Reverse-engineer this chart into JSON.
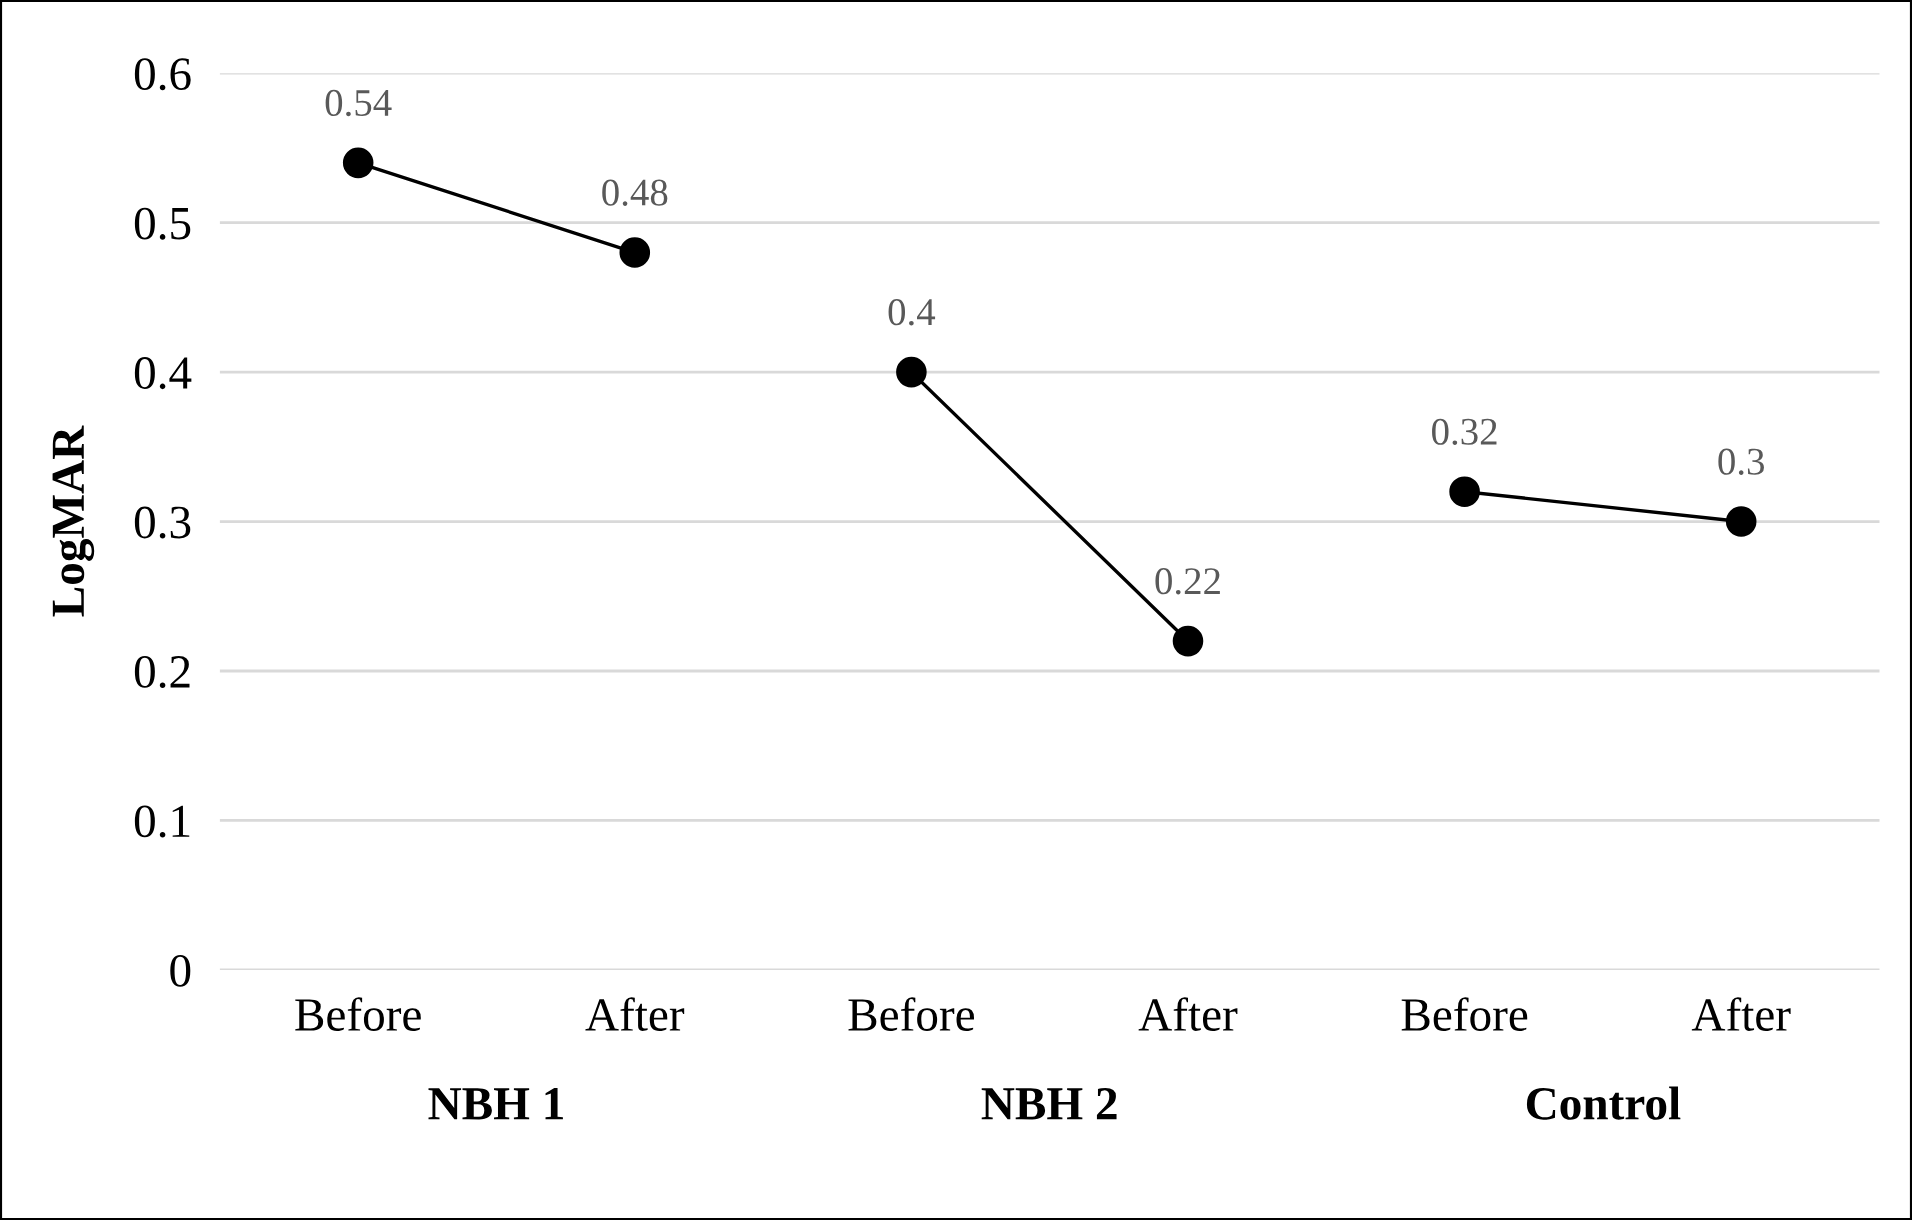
{
  "chart_data": {
    "type": "line",
    "ylabel": "LogMAR",
    "categories": [
      "Before",
      "After",
      "Before",
      "After",
      "Before",
      "After"
    ],
    "series": [
      {
        "color": "#000000",
        "values": [
          0.54,
          0.48,
          null,
          null,
          null,
          null
        ]
      },
      {
        "color": "#000000",
        "values": [
          null,
          null,
          0.4,
          0.22,
          null,
          null
        ]
      },
      {
        "color": "#000000",
        "values": [
          null,
          null,
          null,
          null,
          0.32,
          0.3
        ]
      }
    ],
    "annotations": [
      "NBH 1",
      "NBH 2",
      "Control"
    ],
    "ylim": [
      0,
      0.6
    ],
    "yticks": [
      0,
      0.1,
      0.2,
      0.3,
      0.4,
      0.5,
      0.6
    ],
    "grid": "y",
    "marker": "circle",
    "line_style": "solid",
    "data_labels": true,
    "legend": false
  }
}
